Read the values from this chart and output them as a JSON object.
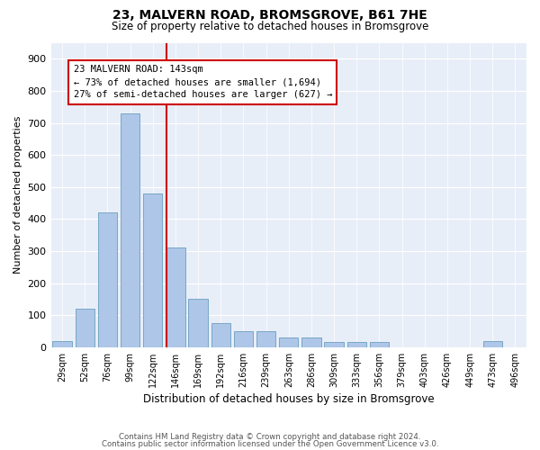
{
  "title1": "23, MALVERN ROAD, BROMSGROVE, B61 7HE",
  "title2": "Size of property relative to detached houses in Bromsgrove",
  "xlabel": "Distribution of detached houses by size in Bromsgrove",
  "ylabel": "Number of detached properties",
  "categories": [
    "29sqm",
    "52sqm",
    "76sqm",
    "99sqm",
    "122sqm",
    "146sqm",
    "169sqm",
    "192sqm",
    "216sqm",
    "239sqm",
    "263sqm",
    "286sqm",
    "309sqm",
    "333sqm",
    "356sqm",
    "379sqm",
    "403sqm",
    "426sqm",
    "449sqm",
    "473sqm",
    "496sqm"
  ],
  "values": [
    20,
    120,
    420,
    730,
    480,
    310,
    150,
    75,
    50,
    50,
    30,
    30,
    15,
    15,
    15,
    0,
    0,
    0,
    0,
    20,
    0
  ],
  "bar_color": "#aec6e8",
  "bar_edge_color": "#6a9fc0",
  "background_color": "#e8eef8",
  "vline_color": "#cc0000",
  "annotation_text": "23 MALVERN ROAD: 143sqm\n← 73% of detached houses are smaller (1,694)\n27% of semi-detached houses are larger (627) →",
  "annotation_box_color": "#cc0000",
  "footer1": "Contains HM Land Registry data © Crown copyright and database right 2024.",
  "footer2": "Contains public sector information licensed under the Open Government Licence v3.0.",
  "ylim": [
    0,
    950
  ],
  "yticks": [
    0,
    100,
    200,
    300,
    400,
    500,
    600,
    700,
    800,
    900
  ]
}
